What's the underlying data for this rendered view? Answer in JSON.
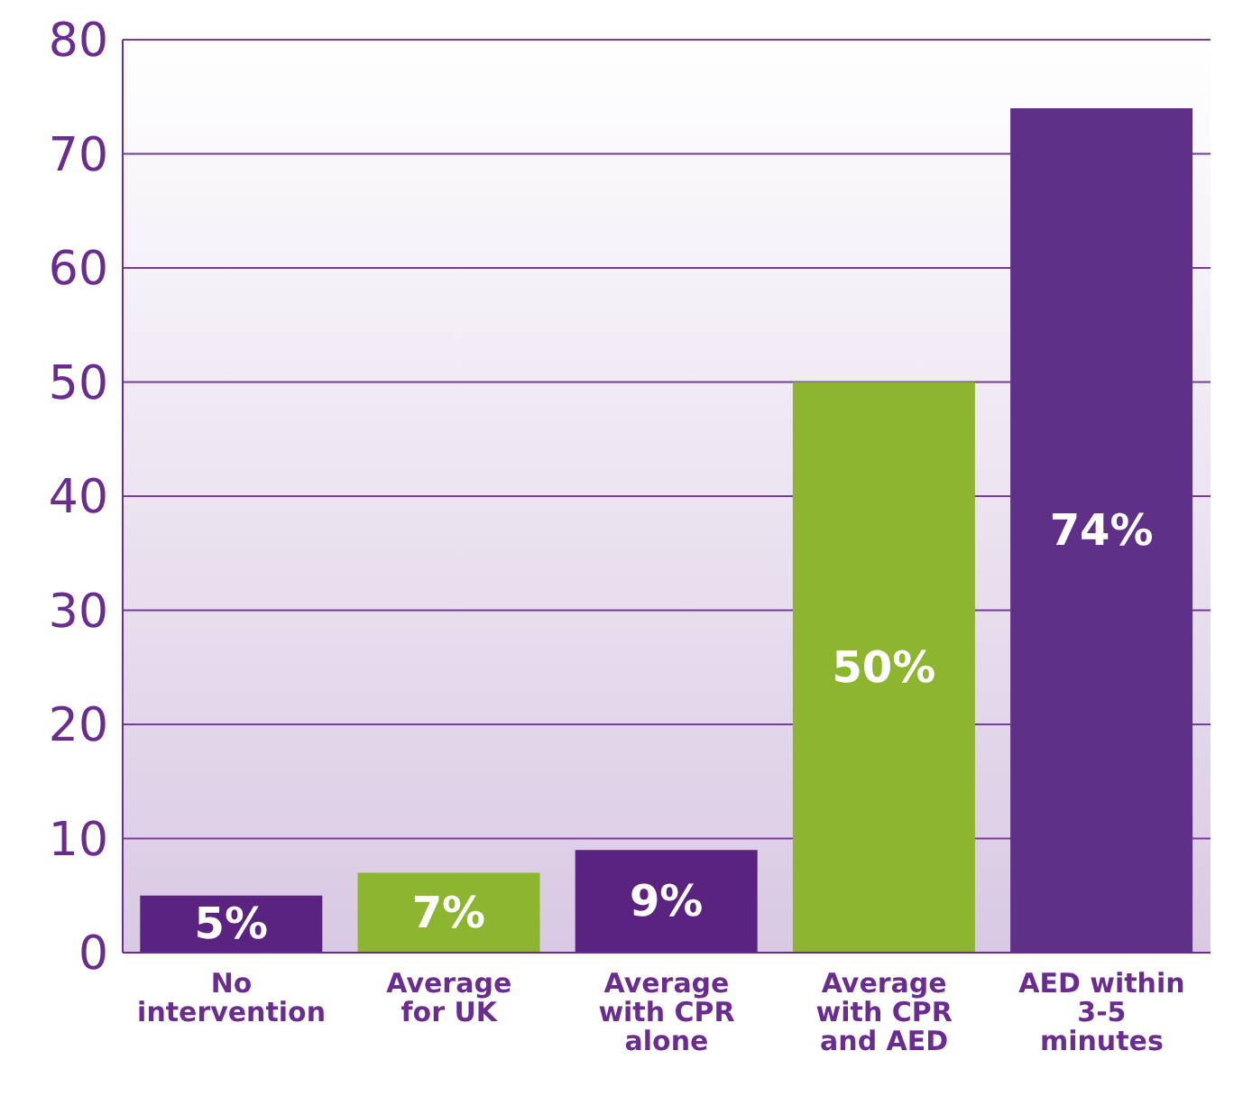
{
  "chart_data": {
    "type": "bar",
    "categories": [
      "No intervention",
      "Average for UK",
      "Average with CPR alone",
      "Average with CPR and AED",
      "AED within 3-5 minutes"
    ],
    "values": [
      5,
      7,
      9,
      50,
      74
    ],
    "colors": [
      "#5a2380",
      "#8db530",
      "#5a2380",
      "#8db530",
      "#5f3088"
    ],
    "value_labels": [
      "5%",
      "7%",
      "9%",
      "50%",
      "74%"
    ],
    "ylim": [
      0,
      80
    ],
    "yticks": [
      0,
      10,
      20,
      30,
      40,
      50,
      60,
      70,
      80
    ],
    "grid": "y"
  }
}
